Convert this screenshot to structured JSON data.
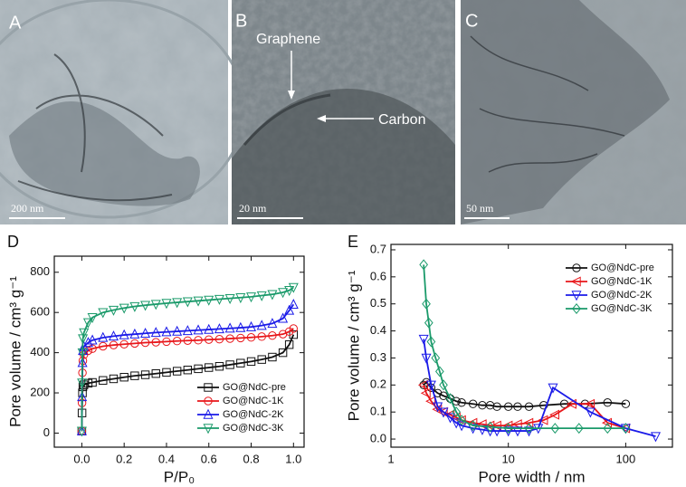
{
  "images": [
    {
      "label": "A",
      "scale_bar": "200 nm"
    },
    {
      "label": "B",
      "scale_bar": "20 nm",
      "annotations": [
        "Graphene",
        "Carbon"
      ]
    },
    {
      "label": "C",
      "scale_bar": "50 nm"
    }
  ],
  "chart_data": [
    {
      "type": "line",
      "panel_label": "D",
      "x_label": "P/P₀",
      "y_label": "Pore volume / cm³ g⁻¹",
      "xlim": [
        -0.13,
        1.05
      ],
      "ylim": [
        -70,
        880
      ],
      "xticks": [
        {
          "value": 0,
          "label": "0.0"
        },
        0.2,
        0.4,
        0.6,
        0.8,
        {
          "value": 1,
          "label": "1.0"
        }
      ],
      "yticks": [
        0,
        200,
        400,
        600,
        800
      ],
      "legend": "lower right",
      "series": [
        {
          "name": "GO@NdC-pre",
          "color": "#111111",
          "marker": "square",
          "x": [
            0,
            0.001,
            0.003,
            0.005,
            0.01,
            0.03,
            0.05,
            0.1,
            0.15,
            0.2,
            0.25,
            0.3,
            0.35,
            0.4,
            0.45,
            0.5,
            0.55,
            0.6,
            0.65,
            0.7,
            0.75,
            0.8,
            0.85,
            0.9,
            0.95,
            0.98,
            1.0
          ],
          "values": [
            10,
            100,
            200,
            230,
            240,
            248,
            252,
            262,
            270,
            278,
            285,
            290,
            296,
            302,
            308,
            314,
            320,
            326,
            332,
            340,
            348,
            356,
            366,
            378,
            400,
            440,
            490
          ]
        },
        {
          "name": "GO@NdC-1K",
          "color": "#e8161a",
          "marker": "circle",
          "x": [
            0,
            0.001,
            0.003,
            0.005,
            0.01,
            0.03,
            0.05,
            0.1,
            0.15,
            0.2,
            0.25,
            0.3,
            0.35,
            0.4,
            0.45,
            0.5,
            0.55,
            0.6,
            0.65,
            0.7,
            0.75,
            0.8,
            0.85,
            0.9,
            0.95,
            0.98,
            1.0
          ],
          "values": [
            10,
            150,
            300,
            360,
            390,
            410,
            420,
            432,
            438,
            442,
            446,
            450,
            452,
            455,
            458,
            460,
            462,
            465,
            467,
            470,
            473,
            476,
            480,
            485,
            492,
            505,
            520
          ]
        },
        {
          "name": "GO@NdC-2K",
          "color": "#1a1ae8",
          "marker": "triangle-up",
          "x": [
            0,
            0.001,
            0.003,
            0.005,
            0.01,
            0.03,
            0.05,
            0.1,
            0.15,
            0.2,
            0.25,
            0.3,
            0.35,
            0.4,
            0.45,
            0.5,
            0.55,
            0.6,
            0.65,
            0.7,
            0.75,
            0.8,
            0.85,
            0.9,
            0.95,
            0.98,
            1.0
          ],
          "values": [
            10,
            180,
            350,
            410,
            430,
            450,
            462,
            475,
            482,
            488,
            492,
            496,
            500,
            503,
            506,
            509,
            512,
            515,
            518,
            521,
            524,
            528,
            535,
            545,
            570,
            610,
            640
          ]
        },
        {
          "name": "GO@NdC-3K",
          "color": "#1a9a6a",
          "marker": "triangle-down",
          "x": [
            0,
            0.001,
            0.003,
            0.005,
            0.01,
            0.03,
            0.05,
            0.1,
            0.15,
            0.2,
            0.25,
            0.3,
            0.35,
            0.4,
            0.45,
            0.5,
            0.55,
            0.6,
            0.65,
            0.7,
            0.75,
            0.8,
            0.85,
            0.9,
            0.95,
            0.98,
            1.0
          ],
          "values": [
            10,
            250,
            400,
            470,
            500,
            550,
            575,
            600,
            612,
            622,
            630,
            636,
            641,
            646,
            650,
            654,
            658,
            662,
            666,
            670,
            674,
            678,
            684,
            690,
            700,
            710,
            725
          ]
        }
      ]
    },
    {
      "type": "line",
      "panel_label": "E",
      "x_label": "Pore width / nm",
      "y_label": "Pore volume / cm³ g⁻¹",
      "xlog": true,
      "xlim": [
        1,
        250
      ],
      "ylim": [
        -0.03,
        0.72
      ],
      "xticks": [
        1,
        10,
        100
      ],
      "yticks": [
        {
          "value": 0,
          "label": "0.0"
        },
        0.1,
        0.2,
        0.3,
        0.4,
        0.5,
        0.6,
        0.7
      ],
      "legend": "upper right",
      "series": [
        {
          "name": "GO@NdC-pre",
          "color": "#111111",
          "marker": "circle",
          "x": [
            1.9,
            2.0,
            2.2,
            2.5,
            2.8,
            3.2,
            3.6,
            4,
            5,
            6,
            7,
            8,
            10,
            12,
            15,
            20,
            30,
            45,
            70,
            100
          ],
          "values": [
            0.2,
            0.21,
            0.19,
            0.17,
            0.16,
            0.15,
            0.14,
            0.135,
            0.13,
            0.125,
            0.125,
            0.12,
            0.12,
            0.12,
            0.12,
            0.125,
            0.13,
            0.13,
            0.135,
            0.13
          ]
        },
        {
          "name": "GO@NdC-1K",
          "color": "#e8161a",
          "marker": "triangle-left",
          "x": [
            1.9,
            2.0,
            2.2,
            2.5,
            2.8,
            3.2,
            3.6,
            4,
            5,
            6,
            7,
            8,
            10,
            12,
            15,
            20,
            25,
            35,
            50,
            70,
            100
          ],
          "values": [
            0.2,
            0.17,
            0.14,
            0.11,
            0.1,
            0.09,
            0.08,
            0.07,
            0.06,
            0.055,
            0.05,
            0.05,
            0.05,
            0.055,
            0.06,
            0.07,
            0.09,
            0.13,
            0.13,
            0.06,
            0.04
          ]
        },
        {
          "name": "GO@NdC-2K",
          "color": "#1a1ae8",
          "marker": "triangle-down",
          "x": [
            1.9,
            2.0,
            2.2,
            2.5,
            2.8,
            3.2,
            3.6,
            4,
            5,
            6,
            7,
            8,
            10,
            12,
            15,
            18,
            24,
            50,
            100,
            180
          ],
          "values": [
            0.37,
            0.3,
            0.2,
            0.12,
            0.1,
            0.08,
            0.06,
            0.05,
            0.04,
            0.035,
            0.03,
            0.03,
            0.03,
            0.03,
            0.03,
            0.04,
            0.19,
            0.1,
            0.04,
            0.01
          ]
        },
        {
          "name": "GO@NdC-3K",
          "color": "#1a9a6a",
          "marker": "diamond",
          "x": [
            1.9,
            2.0,
            2.1,
            2.2,
            2.4,
            2.6,
            2.8,
            3.2,
            3.6,
            4,
            5,
            7,
            10,
            15,
            25,
            40,
            70,
            100
          ],
          "values": [
            0.645,
            0.5,
            0.43,
            0.36,
            0.3,
            0.25,
            0.2,
            0.15,
            0.1,
            0.07,
            0.05,
            0.045,
            0.04,
            0.04,
            0.04,
            0.04,
            0.04,
            0.04
          ]
        }
      ]
    }
  ]
}
